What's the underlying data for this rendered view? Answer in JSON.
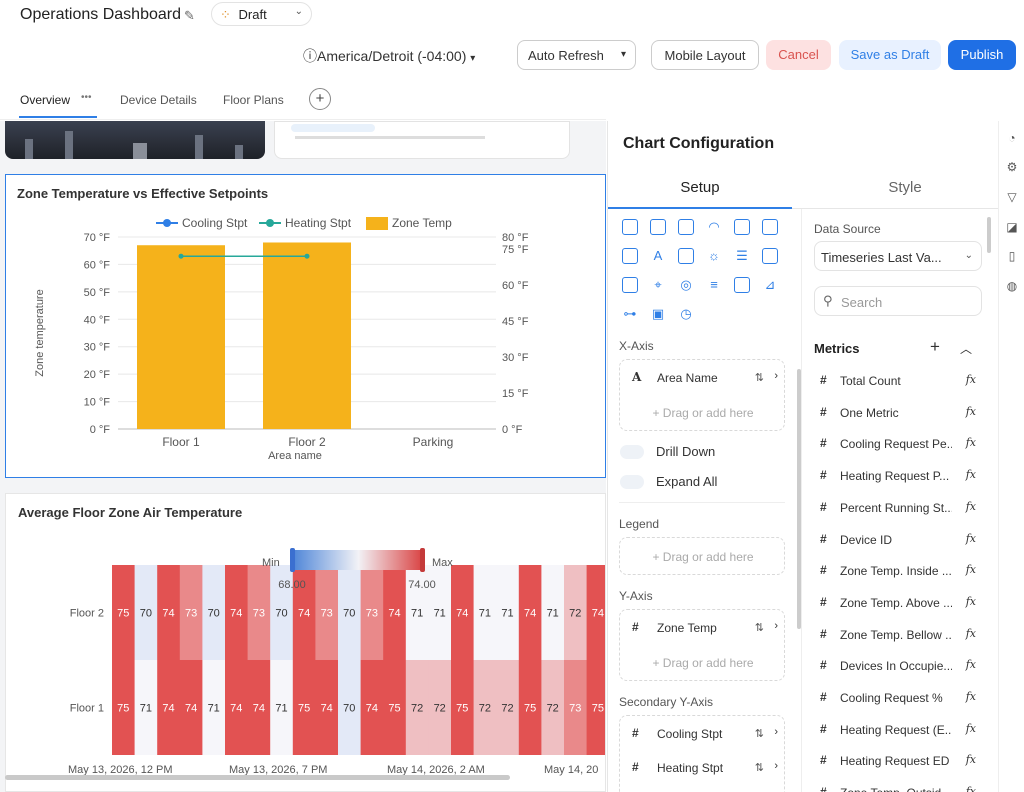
{
  "header": {
    "title": "Operations Dashboard",
    "status": "Draft",
    "timezone": "America/Detroit (-04:00)",
    "auto_refresh": "Auto Refresh",
    "mobile_layout": "Mobile Layout",
    "cancel": "Cancel",
    "save_as_draft": "Save as Draft",
    "publish": "Publish"
  },
  "tabs": [
    {
      "label": "Overview",
      "active": true
    },
    {
      "label": "Device Details"
    },
    {
      "label": "Floor Plans"
    }
  ],
  "chart1": {
    "title": "Zone Temperature vs Effective Setpoints",
    "chart_data": {
      "type": "bar",
      "categories": [
        "Floor 1",
        "Floor 2",
        "Parking"
      ],
      "series": [
        {
          "name": "Zone Temp",
          "kind": "bar",
          "axis": "left",
          "color": "#f5b21b",
          "values": [
            67,
            68,
            null
          ]
        },
        {
          "name": "Cooling Stpt",
          "kind": "line",
          "axis": "right",
          "color": "#2f7fe6",
          "values": [
            null,
            null,
            null
          ]
        },
        {
          "name": "Heating Stpt",
          "kind": "line",
          "axis": "right",
          "color": "#27a89a",
          "values": [
            72,
            72,
            null
          ]
        }
      ],
      "ylabel": "Zone temperature",
      "xlabel": "Area name",
      "ylim": [
        0,
        70
      ],
      "yticks": [
        "0 °F",
        "10 °F",
        "20 °F",
        "30 °F",
        "40 °F",
        "50 °F",
        "60 °F",
        "70 °F"
      ],
      "y2lim": [
        0,
        80
      ],
      "y2ticks": [
        "0 °F",
        "15 °F",
        "30 °F",
        "45 °F",
        "60 °F",
        "75 °F",
        "80 °F"
      ],
      "legend": "top-center",
      "grid": true
    }
  },
  "chart2": {
    "title": "Average Floor Zone Air Temperature",
    "legend_min_label": "Min",
    "legend_max_label": "Max",
    "legend_min": "68.00",
    "legend_max": "74.00",
    "chart_data": {
      "type": "heatmap",
      "rows": [
        "Floor 2",
        "Floor 1"
      ],
      "values": [
        [
          75,
          70,
          74,
          73,
          70,
          74,
          73,
          70,
          74,
          73,
          70,
          73,
          74,
          71,
          71,
          74,
          71,
          71,
          74,
          71,
          72,
          74
        ],
        [
          75,
          71,
          74,
          74,
          71,
          74,
          74,
          71,
          75,
          74,
          70,
          74,
          75,
          72,
          72,
          75,
          72,
          72,
          75,
          72,
          73,
          75
        ]
      ],
      "x_tick_labels": [
        "May 13, 2026, 12 PM",
        "May 13, 2026, 7 PM",
        "May 14, 2026, 2 AM",
        "May 14, 20"
      ],
      "min": 68,
      "max": 74
    }
  },
  "config": {
    "title": "Chart Configuration",
    "tab_setup": "Setup",
    "tab_style": "Style",
    "chart_type_icons": [
      "grid-dots-icon",
      "table-icon",
      "text-card-icon",
      "gauge-icon",
      "window-icon",
      "calendar-grid-icon",
      "image-card-icon",
      "text-a-icon",
      "calendar-icon",
      "weather-icon",
      "bars-h-icon",
      "external-icon",
      "map-icon",
      "map-pin-icon",
      "globe-icon",
      "list-icon",
      "card-icon",
      "line-chart-icon",
      "hierarchy-icon",
      "photo-icon",
      "clock-icon"
    ],
    "x_axis_label": "X-Axis",
    "x_axis_field": "Area Name",
    "drop_placeholder": "+ Drag or add here",
    "drill_down": "Drill Down",
    "expand_all": "Expand All",
    "legend_label": "Legend",
    "y_axis_label": "Y-Axis",
    "y_axis_field": "Zone Temp",
    "secondary_y_label": "Secondary Y-Axis",
    "secondary_fields": [
      "Cooling Stpt",
      "Heating Stpt"
    ],
    "data_source_label": "Data Source",
    "data_source": "Timeseries Last Va...",
    "search_placeholder": "Search",
    "metrics_label": "Metrics",
    "metrics": [
      "Total Count",
      "One Metric",
      "Cooling Request Pe...",
      "Heating Request P...",
      "Percent Running St...",
      "Device ID",
      "Zone Temp. Inside ...",
      "Zone Temp. Above ...",
      "Zone Temp. Bellow ...",
      "Devices In Occupie...",
      "Cooling Request %",
      "Heating Request (E...",
      "Heating Request ED",
      "Zone Temp. Outsid..."
    ]
  },
  "rail_icons": [
    "chart-pie-icon",
    "gear-icon",
    "filter-icon",
    "paint-bucket-icon",
    "book-icon",
    "palette-icon"
  ]
}
